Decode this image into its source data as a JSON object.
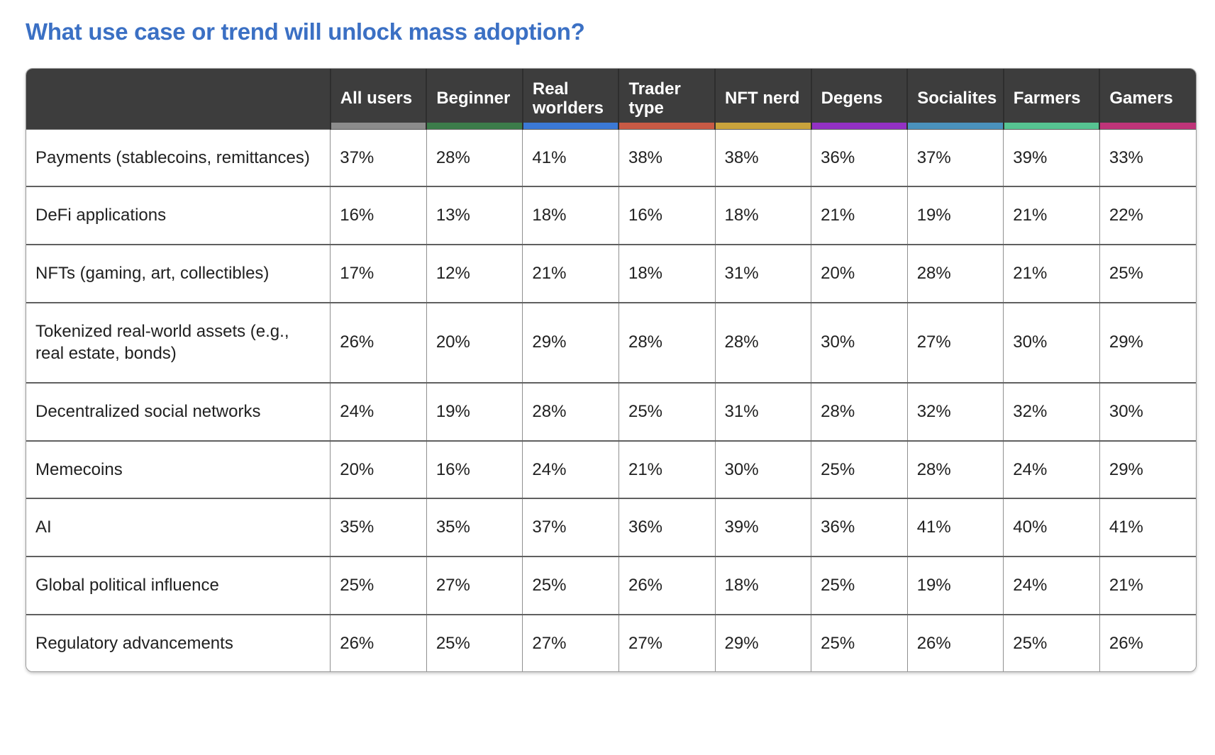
{
  "page": {
    "title": "What use case or trend will unlock mass adoption?"
  },
  "colors": {
    "title_blue": "#3b70c4",
    "header_background": "#3d3d3d",
    "header_text": "#ffffff",
    "body_text": "#212121"
  },
  "chart_data": {
    "type": "table",
    "title": "What use case or trend will unlock mass adoption?",
    "row_header_label": "",
    "columns": [
      {
        "label": "All users",
        "color": "#8c8c8c"
      },
      {
        "label": "Beginner",
        "color": "#3c7c4a"
      },
      {
        "label": "Real worlders",
        "color": "#3b79d6"
      },
      {
        "label": "Trader type",
        "color": "#c85a45"
      },
      {
        "label": "NFT nerd",
        "color": "#c9a33c"
      },
      {
        "label": "Degens",
        "color": "#9331c4"
      },
      {
        "label": "Socialites",
        "color": "#4a92bd"
      },
      {
        "label": "Farmers",
        "color": "#56c492"
      },
      {
        "label": "Gamers",
        "color": "#bf3479"
      }
    ],
    "rows": [
      {
        "label": "Payments (stablecoins, remittances)",
        "values": [
          "37%",
          "28%",
          "41%",
          "38%",
          "38%",
          "36%",
          "37%",
          "39%",
          "33%"
        ]
      },
      {
        "label": "DeFi applications",
        "values": [
          "16%",
          "13%",
          "18%",
          "16%",
          "18%",
          "21%",
          "19%",
          "21%",
          "22%"
        ]
      },
      {
        "label": "NFTs (gaming, art, collectibles)",
        "values": [
          "17%",
          "12%",
          "21%",
          "18%",
          "31%",
          "20%",
          "28%",
          "21%",
          "25%"
        ]
      },
      {
        "label": "Tokenized real-world assets (e.g., real estate, bonds)",
        "values": [
          "26%",
          "20%",
          "29%",
          "28%",
          "28%",
          "30%",
          "27%",
          "30%",
          "29%"
        ]
      },
      {
        "label": "Decentralized social networks",
        "values": [
          "24%",
          "19%",
          "28%",
          "25%",
          "31%",
          "28%",
          "32%",
          "32%",
          "30%"
        ]
      },
      {
        "label": "Memecoins",
        "values": [
          "20%",
          "16%",
          "24%",
          "21%",
          "30%",
          "25%",
          "28%",
          "24%",
          "29%"
        ]
      },
      {
        "label": "AI",
        "values": [
          "35%",
          "35%",
          "37%",
          "36%",
          "39%",
          "36%",
          "41%",
          "40%",
          "41%"
        ]
      },
      {
        "label": "Global political influence",
        "values": [
          "25%",
          "27%",
          "25%",
          "26%",
          "18%",
          "25%",
          "19%",
          "24%",
          "21%"
        ]
      },
      {
        "label": "Regulatory advancements",
        "values": [
          "26%",
          "25%",
          "27%",
          "27%",
          "29%",
          "25%",
          "26%",
          "25%",
          "26%"
        ]
      }
    ]
  }
}
